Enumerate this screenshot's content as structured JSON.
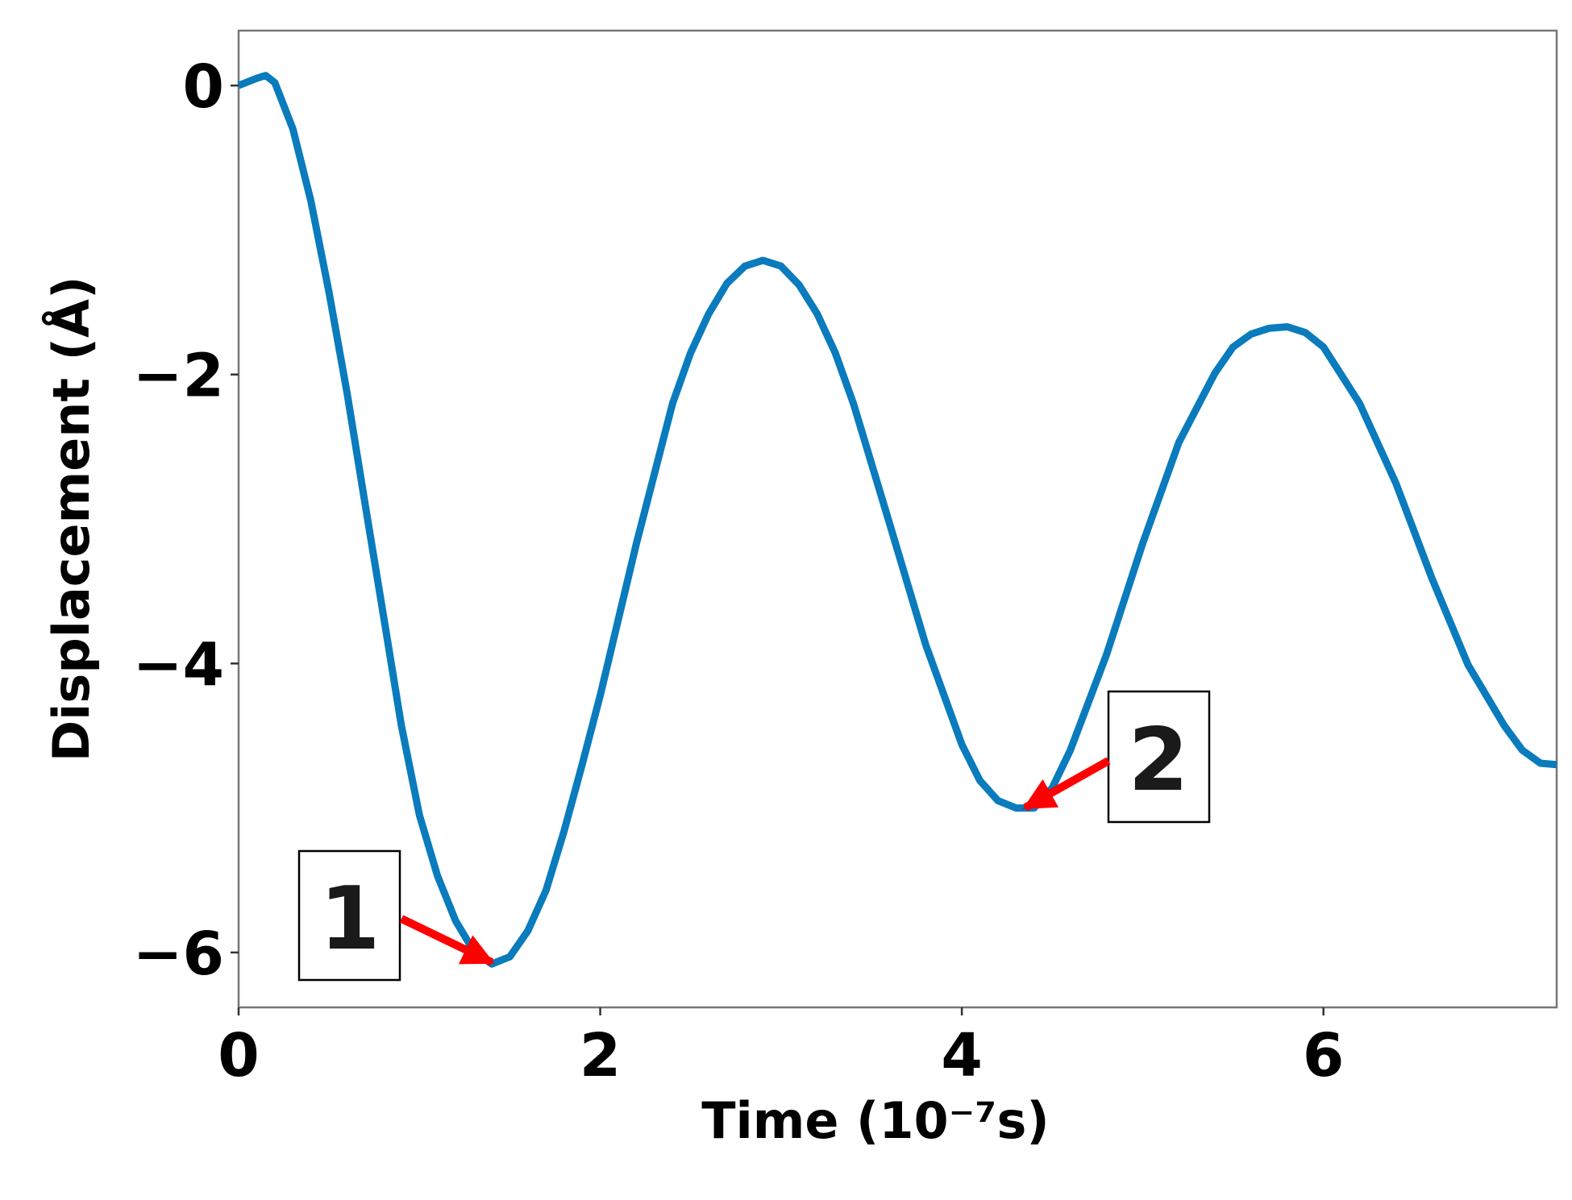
{
  "chart_data": {
    "type": "line",
    "x_label": "Time (10⁻⁷s)",
    "y_label": "Displacement (Å)",
    "x": [
      0,
      0.1,
      0.15,
      0.2,
      0.3,
      0.4,
      0.5,
      0.6,
      0.7,
      0.8,
      0.9,
      1.0,
      1.1,
      1.2,
      1.3,
      1.4,
      1.5,
      1.6,
      1.7,
      1.8,
      1.9,
      2.0,
      2.2,
      2.4,
      2.5,
      2.6,
      2.7,
      2.8,
      2.9,
      3.0,
      3.1,
      3.2,
      3.3,
      3.4,
      3.6,
      3.8,
      4.0,
      4.1,
      4.2,
      4.3,
      4.4,
      4.5,
      4.6,
      4.8,
      5.0,
      5.2,
      5.4,
      5.5,
      5.6,
      5.7,
      5.8,
      5.9,
      6.0,
      6.2,
      6.4,
      6.6,
      6.8,
      7.0,
      7.1,
      7.2,
      7.29
    ],
    "series": [
      {
        "color": "#0a7bbd",
        "values": [
          0,
          0.05,
          0.07,
          0.02,
          -0.3,
          -0.8,
          -1.43,
          -2.13,
          -2.9,
          -3.66,
          -4.43,
          -5.05,
          -5.47,
          -5.78,
          -5.99,
          -6.08,
          -6.03,
          -5.85,
          -5.57,
          -5.16,
          -4.7,
          -4.22,
          -3.17,
          -2.2,
          -1.85,
          -1.58,
          -1.37,
          -1.25,
          -1.21,
          -1.25,
          -1.38,
          -1.58,
          -1.85,
          -2.2,
          -3.03,
          -3.87,
          -4.56,
          -4.81,
          -4.95,
          -5.0,
          -5.0,
          -4.86,
          -4.6,
          -3.94,
          -3.17,
          -2.47,
          -1.99,
          -1.81,
          -1.72,
          -1.68,
          -1.67,
          -1.71,
          -1.81,
          -2.2,
          -2.75,
          -3.41,
          -4.01,
          -4.43,
          -4.6,
          -4.69,
          -4.7
        ]
      }
    ],
    "xlim": [
      0,
      7.29
    ],
    "ylim": [
      -6.38,
      0.38
    ],
    "xticks": [
      0,
      2,
      4,
      6
    ],
    "yticks": [
      {
        "value": -6,
        "label": "−6"
      },
      {
        "value": -4,
        "label": "−4"
      },
      {
        "value": -2,
        "label": "−2"
      },
      0
    ],
    "annotations": [
      {
        "text": "1"
      },
      {
        "text": "2"
      }
    ]
  }
}
